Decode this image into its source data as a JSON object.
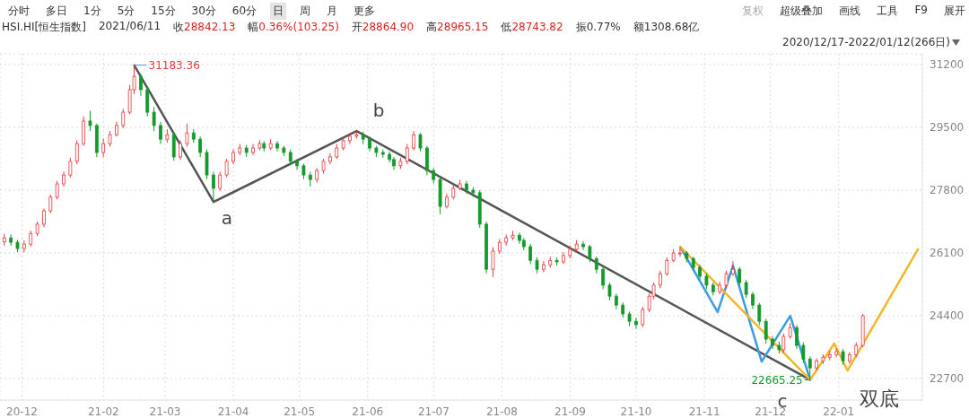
{
  "chart_data": {
    "type": "candlestick",
    "title": "HSI.HI[恒生指数]",
    "subtitle": "2021/06/11  收28842.13  幅0.36%(103.25)  开28864.90  高28965.15  低28743.82  振0.77%  额1308.68亿",
    "annotations": [
      "分时",
      "多日",
      "1分",
      "5分",
      "15分",
      "30分",
      "60分",
      "日",
      "周",
      "月",
      "更多",
      "复权",
      "超级叠加",
      "画线",
      "工具",
      "F9",
      "展开",
      "2020/12/17-2022/01/12(266日)",
      "a",
      "b",
      "c",
      "双底"
    ],
    "x": [
      "2020-12-18",
      "2020-12-21",
      "2020-12-24",
      "2020-12-27",
      "2020-12-30",
      "2021-01-02",
      "2021-01-05",
      "2021-01-08",
      "2021-01-11",
      "2021-01-14",
      "2021-01-17",
      "2021-01-20",
      "2021-01-23",
      "2021-01-26",
      "2021-01-29",
      "2021-02-01",
      "2021-02-04",
      "2021-02-07",
      "2021-02-10",
      "2021-02-13",
      "2021-02-15",
      "2021-02-18",
      "2021-02-21",
      "2021-02-24",
      "2021-02-27",
      "2021-03-02",
      "2021-03-05",
      "2021-03-08",
      "2021-03-11",
      "2021-03-14",
      "2021-03-17",
      "2021-03-20",
      "2021-03-23",
      "2021-03-26",
      "2021-03-29",
      "2021-04-01",
      "2021-04-04",
      "2021-04-07",
      "2021-04-10",
      "2021-04-13",
      "2021-04-15",
      "2021-04-18",
      "2021-04-21",
      "2021-04-24",
      "2021-04-27",
      "2021-04-30",
      "2021-05-03",
      "2021-05-06",
      "2021-05-09",
      "2021-05-12",
      "2021-05-15",
      "2021-05-18",
      "2021-05-21",
      "2021-05-24",
      "2021-05-27",
      "2021-05-30",
      "2021-06-02",
      "2021-06-05",
      "2021-06-08",
      "2021-06-11",
      "2021-06-13",
      "2021-06-16",
      "2021-06-19",
      "2021-06-22",
      "2021-06-25",
      "2021-06-28",
      "2021-07-01",
      "2021-07-04",
      "2021-07-07",
      "2021-07-10",
      "2021-07-13",
      "2021-07-16",
      "2021-07-19",
      "2021-07-22",
      "2021-07-25",
      "2021-07-28",
      "2021-07-31",
      "2021-08-03",
      "2021-08-06",
      "2021-08-09",
      "2021-08-11",
      "2021-08-14",
      "2021-08-17",
      "2021-08-20",
      "2021-08-23",
      "2021-08-26",
      "2021-08-29",
      "2021-09-01",
      "2021-09-04",
      "2021-09-07",
      "2021-09-10",
      "2021-09-13",
      "2021-09-16",
      "2021-09-19",
      "2021-09-22",
      "2021-09-25",
      "2021-09-28",
      "2021-10-01",
      "2021-10-04",
      "2021-10-07",
      "2021-10-09",
      "2021-10-12",
      "2021-10-15",
      "2021-10-18",
      "2021-10-21",
      "2021-10-24",
      "2021-10-27",
      "2021-10-30",
      "2021-11-02",
      "2021-11-05",
      "2021-11-08",
      "2021-11-11",
      "2021-11-14",
      "2021-11-17",
      "2021-11-20",
      "2021-11-23",
      "2021-11-26",
      "2021-11-29",
      "2021-12-02",
      "2021-12-05",
      "2021-12-07",
      "2021-12-10",
      "2021-12-13",
      "2021-12-16",
      "2021-12-19",
      "2021-12-22",
      "2021-12-25",
      "2021-12-28",
      "2021-12-31",
      "2022-01-03",
      "2022-01-06",
      "2022-01-09",
      "2022-01-12"
    ],
    "ohlc": [
      [
        26400,
        26620,
        26300,
        26510
      ],
      [
        26510,
        26600,
        26290,
        26390
      ],
      [
        26390,
        26450,
        26120,
        26220
      ],
      [
        26220,
        26440,
        26120,
        26340
      ],
      [
        26340,
        26700,
        26280,
        26630
      ],
      [
        26630,
        26950,
        26560,
        26880
      ],
      [
        26880,
        27300,
        26800,
        27240
      ],
      [
        27240,
        27680,
        27180,
        27610
      ],
      [
        27610,
        28050,
        27550,
        27970
      ],
      [
        27970,
        28300,
        27900,
        28210
      ],
      [
        28210,
        28680,
        28150,
        28580
      ],
      [
        28580,
        29150,
        28500,
        29060
      ],
      [
        29060,
        29800,
        29000,
        29670
      ],
      [
        29670,
        29950,
        29400,
        29550
      ],
      [
        29550,
        29600,
        28700,
        28820
      ],
      [
        28820,
        29200,
        28700,
        29060
      ],
      [
        29060,
        29400,
        28980,
        29300
      ],
      [
        29300,
        29650,
        29250,
        29550
      ],
      [
        29550,
        30000,
        29480,
        29910
      ],
      [
        29910,
        30650,
        29850,
        30520
      ],
      [
        30520,
        31183.36,
        30400,
        30880
      ],
      [
        30880,
        30950,
        30350,
        30520
      ],
      [
        30520,
        30600,
        29800,
        29910
      ],
      [
        29910,
        30050,
        29400,
        29550
      ],
      [
        29550,
        29650,
        29050,
        29180
      ],
      [
        29180,
        29450,
        29080,
        29300
      ],
      [
        29300,
        29380,
        28600,
        28700
      ],
      [
        28700,
        29150,
        28620,
        29060
      ],
      [
        29060,
        29600,
        28980,
        29350
      ],
      [
        29350,
        29450,
        29080,
        29180
      ],
      [
        29180,
        29250,
        28700,
        28820
      ],
      [
        28820,
        28900,
        28100,
        28210
      ],
      [
        28210,
        28300,
        27480,
        27850
      ],
      [
        27850,
        28300,
        27780,
        28210
      ],
      [
        28210,
        28650,
        28150,
        28580
      ],
      [
        28580,
        28900,
        28500,
        28820
      ],
      [
        28820,
        29050,
        28750,
        28940
      ],
      [
        28940,
        29020,
        28700,
        28820
      ],
      [
        28820,
        29050,
        28750,
        28940
      ],
      [
        28940,
        29150,
        28880,
        29060
      ],
      [
        29060,
        29120,
        28850,
        28940
      ],
      [
        28940,
        29180,
        28880,
        29060
      ],
      [
        29060,
        29130,
        28850,
        28940
      ],
      [
        28940,
        29000,
        28720,
        28820
      ],
      [
        28820,
        28900,
        28480,
        28580
      ],
      [
        28580,
        28650,
        28350,
        28460
      ],
      [
        28460,
        28520,
        28100,
        28210
      ],
      [
        28210,
        28300,
        27900,
        28090
      ],
      [
        28090,
        28400,
        28000,
        28330
      ],
      [
        28330,
        28650,
        28250,
        28580
      ],
      [
        28580,
        28800,
        28500,
        28700
      ],
      [
        28700,
        29050,
        28650,
        28940
      ],
      [
        28940,
        29220,
        28880,
        29140
      ],
      [
        29140,
        29350,
        29050,
        29260
      ],
      [
        29260,
        29403,
        29200,
        29300
      ],
      [
        29300,
        29380,
        29050,
        29180
      ],
      [
        29180,
        29250,
        28850,
        28940
      ],
      [
        28940,
        29000,
        28700,
        28820
      ],
      [
        28820,
        28900,
        28680,
        28770
      ],
      [
        28770,
        28850,
        28550,
        28630
      ],
      [
        28630,
        28700,
        28350,
        28460
      ],
      [
        28460,
        28680,
        28380,
        28580
      ],
      [
        28580,
        29050,
        28500,
        28940
      ],
      [
        28940,
        29400,
        28880,
        29300
      ],
      [
        29300,
        29350,
        28850,
        28940
      ],
      [
        28940,
        29000,
        28200,
        28330
      ],
      [
        28330,
        28400,
        27980,
        28090
      ],
      [
        28090,
        28150,
        27150,
        27360
      ],
      [
        27360,
        27700,
        27300,
        27610
      ],
      [
        27610,
        27950,
        27550,
        27850
      ],
      [
        27850,
        28080,
        27800,
        27970
      ],
      [
        27970,
        28050,
        27700,
        27800
      ],
      [
        27800,
        27880,
        27620,
        27730
      ],
      [
        27730,
        27800,
        26780,
        26880
      ],
      [
        26880,
        26950,
        25550,
        25660
      ],
      [
        25660,
        26250,
        25450,
        26150
      ],
      [
        26150,
        26480,
        26080,
        26390
      ],
      [
        26390,
        26600,
        26300,
        26510
      ],
      [
        26510,
        26700,
        26450,
        26580
      ],
      [
        26580,
        26650,
        26350,
        26440
      ],
      [
        26440,
        26500,
        26180,
        26270
      ],
      [
        26270,
        26350,
        25800,
        25900
      ],
      [
        25900,
        25980,
        25550,
        25660
      ],
      [
        25660,
        25880,
        25580,
        25780
      ],
      [
        25780,
        26000,
        25700,
        25900
      ],
      [
        25900,
        25980,
        25760,
        25860
      ],
      [
        25860,
        26120,
        25800,
        26030
      ],
      [
        26030,
        26300,
        25950,
        26200
      ],
      [
        26200,
        26450,
        26120,
        26340
      ],
      [
        26340,
        26420,
        26180,
        26270
      ],
      [
        26270,
        26320,
        25850,
        25950
      ],
      [
        25950,
        26000,
        25550,
        25660
      ],
      [
        25660,
        25720,
        25120,
        25230
      ],
      [
        25230,
        25300,
        24820,
        24930
      ],
      [
        24930,
        25000,
        24580,
        24690
      ],
      [
        24690,
        24760,
        24350,
        24450
      ],
      [
        24450,
        24520,
        24120,
        24250
      ],
      [
        24250,
        24350,
        24050,
        24160
      ],
      [
        24160,
        24650,
        24100,
        24570
      ],
      [
        24570,
        25000,
        24500,
        24930
      ],
      [
        24930,
        25300,
        24850,
        25230
      ],
      [
        25230,
        25620,
        25150,
        25540
      ],
      [
        25540,
        25980,
        25480,
        25900
      ],
      [
        25900,
        26200,
        25850,
        26100
      ],
      [
        26100,
        26250,
        26000,
        26100
      ],
      [
        26100,
        26150,
        25850,
        25950
      ],
      [
        25950,
        26000,
        25620,
        25710
      ],
      [
        25710,
        25780,
        25380,
        25470
      ],
      [
        25470,
        25550,
        25120,
        25230
      ],
      [
        25230,
        25300,
        24950,
        25050
      ],
      [
        25050,
        25320,
        24980,
        25230
      ],
      [
        25230,
        25620,
        25150,
        25540
      ],
      [
        25540,
        25880,
        25480,
        25660
      ],
      [
        25660,
        25720,
        25200,
        25300
      ],
      [
        25300,
        25380,
        24880,
        24980
      ],
      [
        24980,
        25050,
        24580,
        24690
      ],
      [
        24690,
        24750,
        24150,
        24250
      ],
      [
        24250,
        24320,
        23650,
        23770
      ],
      [
        23770,
        23850,
        23500,
        23600
      ],
      [
        23600,
        23700,
        23380,
        23480
      ],
      [
        23480,
        23920,
        23400,
        23840
      ],
      [
        23840,
        24200,
        23780,
        24080
      ],
      [
        24080,
        24150,
        23500,
        23600
      ],
      [
        23600,
        23680,
        23120,
        23230
      ],
      [
        23230,
        23300,
        22665.25,
        22990
      ],
      [
        22990,
        23250,
        22920,
        23180
      ],
      [
        23180,
        23350,
        23100,
        23280
      ],
      [
        23280,
        23450,
        23200,
        23350
      ],
      [
        23350,
        23520,
        23280,
        23430
      ],
      [
        23430,
        23500,
        23080,
        23180
      ],
      [
        23180,
        23420,
        23100,
        23350
      ],
      [
        23350,
        23680,
        23280,
        23600
      ],
      [
        23600,
        24450,
        23550,
        24400
      ]
    ],
    "colors": [
      "#e8393d",
      "#139a2b",
      "#139a2b",
      "#e8393d",
      "#e8393d",
      "#e8393d",
      "#e8393d",
      "#e8393d",
      "#e8393d",
      "#e8393d",
      "#e8393d",
      "#e8393d",
      "#e8393d",
      "#139a2b",
      "#139a2b",
      "#e8393d",
      "#e8393d",
      "#e8393d",
      "#e8393d",
      "#e8393d",
      "#e8393d",
      "#139a2b",
      "#139a2b",
      "#139a2b",
      "#139a2b",
      "#e8393d",
      "#139a2b",
      "#e8393d",
      "#e8393d",
      "#139a2b",
      "#139a2b",
      "#139a2b",
      "#139a2b",
      "#e8393d",
      "#e8393d",
      "#e8393d",
      "#e8393d",
      "#139a2b",
      "#e8393d",
      "#e8393d",
      "#139a2b",
      "#e8393d",
      "#139a2b",
      "#139a2b",
      "#139a2b",
      "#139a2b",
      "#139a2b",
      "#139a2b",
      "#e8393d",
      "#e8393d",
      "#e8393d",
      "#e8393d",
      "#e8393d",
      "#e8393d",
      "#e8393d",
      "#139a2b",
      "#139a2b",
      "#139a2b",
      "#139a2b",
      "#139a2b",
      "#139a2b",
      "#e8393d",
      "#e8393d",
      "#e8393d",
      "#139a2b",
      "#139a2b",
      "#139a2b",
      "#139a2b",
      "#e8393d",
      "#e8393d",
      "#e8393d",
      "#139a2b",
      "#139a2b",
      "#139a2b",
      "#139a2b",
      "#e8393d",
      "#e8393d",
      "#e8393d",
      "#e8393d",
      "#139a2b",
      "#139a2b",
      "#139a2b",
      "#139a2b",
      "#e8393d",
      "#e8393d",
      "#139a2b",
      "#e8393d",
      "#e8393d",
      "#e8393d",
      "#139a2b",
      "#139a2b",
      "#139a2b",
      "#139a2b",
      "#139a2b",
      "#139a2b",
      "#139a2b",
      "#139a2b",
      "#139a2b",
      "#e8393d",
      "#e8393d",
      "#e8393d",
      "#e8393d",
      "#e8393d",
      "#e8393d",
      "#e8393d",
      "#139a2b",
      "#139a2b",
      "#139a2b",
      "#139a2b",
      "#139a2b",
      "#e8393d",
      "#e8393d",
      "#e8393d",
      "#139a2b",
      "#139a2b",
      "#139a2b",
      "#139a2b",
      "#139a2b",
      "#139a2b",
      "#139a2b",
      "#e8393d",
      "#e8393d",
      "#139a2b",
      "#139a2b",
      "#139a2b",
      "#e8393d",
      "#e8393d",
      "#e8393d",
      "#e8393d",
      "#139a2b",
      "#e8393d",
      "#e8393d",
      "#e8393d"
    ],
    "value_labels": [
      null,
      null,
      null,
      null,
      null,
      null,
      null,
      null,
      null,
      null,
      null,
      null,
      null,
      null,
      null,
      null,
      null,
      null,
      null,
      null,
      "31183.36",
      null,
      null,
      null,
      null,
      null,
      null,
      null,
      null,
      null,
      null,
      null,
      null,
      null,
      null,
      null,
      null,
      null,
      null,
      null,
      null,
      null,
      null,
      null,
      null,
      null,
      null,
      null,
      null,
      null,
      null,
      null,
      null,
      null,
      null,
      null,
      null,
      null,
      null,
      null,
      null,
      null,
      null,
      null,
      null,
      null,
      null,
      null,
      null,
      null,
      null,
      null,
      null,
      null,
      null,
      null,
      null,
      null,
      null,
      null,
      null,
      null,
      null,
      null,
      null,
      null,
      null,
      null,
      null,
      null,
      null,
      null,
      null,
      null,
      null,
      null,
      null,
      null,
      null,
      null,
      null,
      null,
      null,
      null,
      null,
      null,
      null,
      null,
      null,
      null,
      null,
      null,
      null,
      null,
      null,
      null,
      null,
      null,
      null,
      null,
      null,
      null,
      null,
      null,
      "22665.25",
      null,
      null,
      null,
      null,
      null,
      null,
      null,
      null
    ],
    "series": [
      {
        "type": "line",
        "color": "#555555",
        "x": [
          "2021-02-15",
          "2021-03-23",
          "2021-05-27",
          "2021-12-19"
        ],
        "values": [
          31180,
          27480,
          29400,
          22670
        ]
      },
      {
        "type": "line",
        "color": "#3d9be0",
        "x": [
          "2021-10-21",
          "2021-11-07",
          "2021-11-14",
          "2021-11-27",
          "2021-12-10",
          "2021-12-19"
        ],
        "values": [
          26270,
          24500,
          25760,
          23160,
          24400,
          22670
        ]
      },
      {
        "type": "line",
        "color": "#f2b62b",
        "x": [
          "2021-10-21",
          "2021-12-19",
          "2021-12-30",
          "2022-01-05",
          "2022-02-06"
        ],
        "values": [
          26270,
          22670,
          23650,
          22920,
          26200
        ]
      }
    ],
    "xlim": [
      "2020-12-16",
      "2022-02-08"
    ],
    "xticks": [
      {
        "value": "2020-12-26",
        "label": "20-12"
      },
      {
        "value": "2021-02-01",
        "label": "21-02"
      },
      {
        "value": "2021-03-01",
        "label": "21-03"
      },
      {
        "value": "2021-04-01",
        "label": "21-04"
      },
      {
        "value": "2021-05-01",
        "label": "21-05"
      },
      {
        "value": "2021-06-01",
        "label": "21-06"
      },
      {
        "value": "2021-07-01",
        "label": "21-07"
      },
      {
        "value": "2021-08-01",
        "label": "21-08"
      },
      {
        "value": "2021-09-01",
        "label": "21-09"
      },
      {
        "value": "2021-10-01",
        "label": "21-10"
      },
      {
        "value": "2021-11-01",
        "label": "21-11"
      },
      {
        "value": "2021-12-01",
        "label": "21-12"
      },
      {
        "value": "2022-01-01",
        "label": "22-01"
      }
    ],
    "ylim": [
      22120,
      31490
    ],
    "yticks": [
      22700,
      24400,
      26100,
      27800,
      29500,
      31200
    ],
    "grid": true
  }
}
